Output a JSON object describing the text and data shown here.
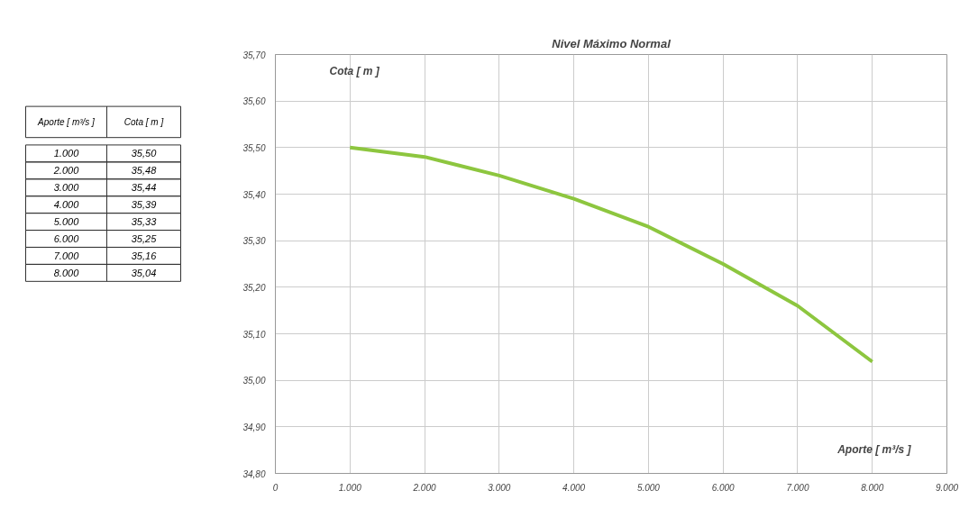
{
  "chart_data": {
    "type": "line",
    "title": "Nivel Máximo Normal",
    "xlabel": "Aporte [ m³/s ]",
    "ylabel": "Cota [ m ]",
    "x": [
      1000,
      2000,
      3000,
      4000,
      5000,
      6000,
      7000,
      8000
    ],
    "series": [
      {
        "color": "#8dc63f",
        "values": [
          35.5,
          35.48,
          35.44,
          35.39,
          35.33,
          35.25,
          35.16,
          35.04
        ]
      }
    ],
    "value_labels": [
      "35,50",
      "35,48",
      "35,44",
      "35,39",
      "35,33",
      "35,25",
      "35,16",
      "35,04"
    ],
    "xlim": [
      0,
      9000
    ],
    "xticks": [
      {
        "value": 0,
        "label": "0"
      },
      {
        "value": 1000,
        "label": "1.000"
      },
      {
        "value": 2000,
        "label": "2.000"
      },
      {
        "value": 3000,
        "label": "3.000"
      },
      {
        "value": 4000,
        "label": "4.000"
      },
      {
        "value": 5000,
        "label": "5.000"
      },
      {
        "value": 6000,
        "label": "6.000"
      },
      {
        "value": 7000,
        "label": "7.000"
      },
      {
        "value": 8000,
        "label": "8.000"
      },
      {
        "value": 9000,
        "label": "9.000"
      }
    ],
    "ylim": [
      34.8,
      35.7
    ],
    "yticks": [
      {
        "value": 34.8,
        "label": "34,80"
      },
      {
        "value": 34.9,
        "label": "34,90"
      },
      {
        "value": 35.0,
        "label": "35,00"
      },
      {
        "value": 35.1,
        "label": "35,10"
      },
      {
        "value": 35.2,
        "label": "35,20"
      },
      {
        "value": 35.3,
        "label": "35,30"
      },
      {
        "value": 35.4,
        "label": "35,40"
      },
      {
        "value": 35.5,
        "label": "35,50"
      },
      {
        "value": 35.6,
        "label": "35,60"
      },
      {
        "value": 35.7,
        "label": "35,70"
      }
    ],
    "grid": true,
    "marker": "none",
    "line_style": "solid"
  }
}
